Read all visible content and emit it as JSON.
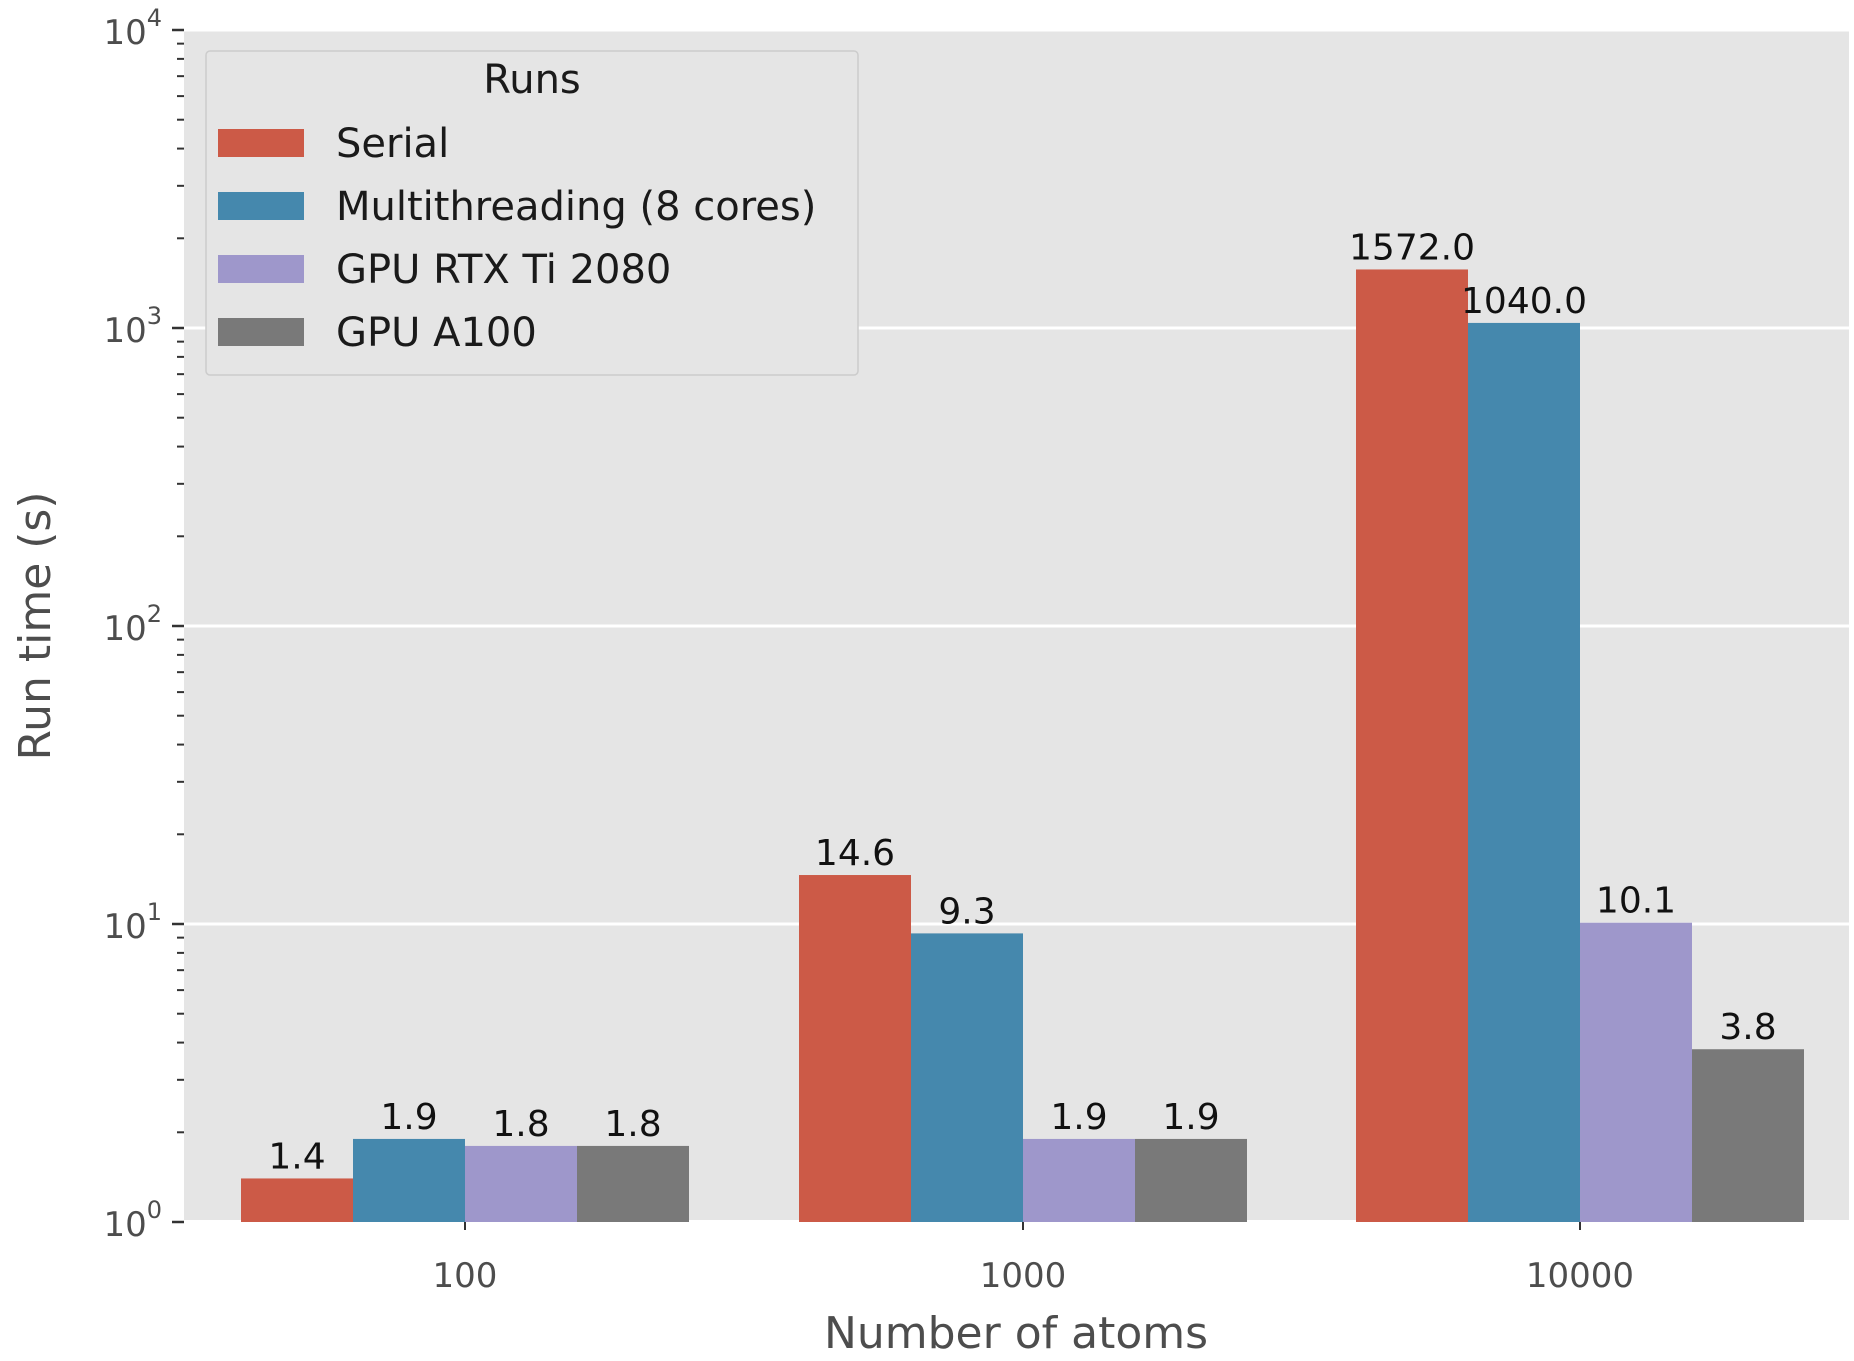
{
  "chart_data": {
    "type": "bar",
    "title": "",
    "xlabel": "Number of atoms",
    "ylabel": "Run time (s)",
    "yscale": "log",
    "ylim": [
      1,
      10000
    ],
    "grid": true,
    "categories": [
      "100",
      "1000",
      "10000"
    ],
    "yticks": [
      {
        "base": "10",
        "exp": "0",
        "value": 1
      },
      {
        "base": "10",
        "exp": "1",
        "value": 10
      },
      {
        "base": "10",
        "exp": "2",
        "value": 100
      },
      {
        "base": "10",
        "exp": "3",
        "value": 1000
      },
      {
        "base": "10",
        "exp": "4",
        "value": 10000
      }
    ],
    "legend": {
      "title": "Runs",
      "placement": "top-left"
    },
    "series": [
      {
        "name": "Serial",
        "color": "#cc5a47",
        "values": [
          1.4,
          14.6,
          1572.0
        ],
        "labels": [
          "1.4",
          "14.6",
          "1572.0"
        ]
      },
      {
        "name": "Multithreading (8 cores)",
        "color": "#4588ad",
        "values": [
          1.9,
          9.3,
          1040.0
        ],
        "labels": [
          "1.9",
          "9.3",
          "1040.0"
        ]
      },
      {
        "name": "GPU RTX Ti 2080",
        "color": "#9e97cb",
        "values": [
          1.8,
          1.9,
          10.1
        ],
        "labels": [
          "1.8",
          "1.9",
          "10.1"
        ]
      },
      {
        "name": "GPU A100",
        "color": "#797979",
        "values": [
          1.8,
          1.9,
          3.8
        ],
        "labels": [
          "1.8",
          "1.9",
          "3.8"
        ]
      }
    ]
  }
}
